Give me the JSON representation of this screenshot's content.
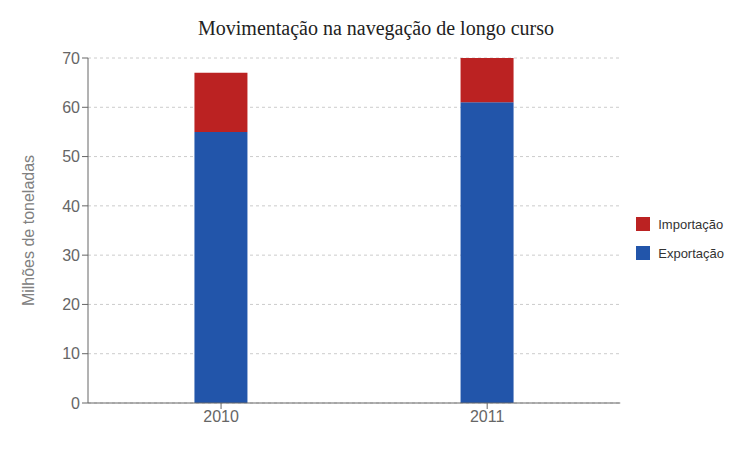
{
  "chart_data": {
    "type": "bar",
    "title": "Movimentação na navegação de longo curso",
    "categories": [
      "2010",
      "2011"
    ],
    "series": [
      {
        "name": "Exportação",
        "color": "#2255AA",
        "values": [
          55,
          61
        ]
      },
      {
        "name": "Importação",
        "color": "#BB2222",
        "values": [
          12,
          9
        ]
      }
    ],
    "stacked": true,
    "y_label": "Milhões de toneladas",
    "ylim": [
      0,
      70
    ],
    "yticks": [
      0,
      10,
      20,
      30,
      40,
      50,
      60,
      70
    ],
    "grid": true,
    "legend": "right"
  }
}
